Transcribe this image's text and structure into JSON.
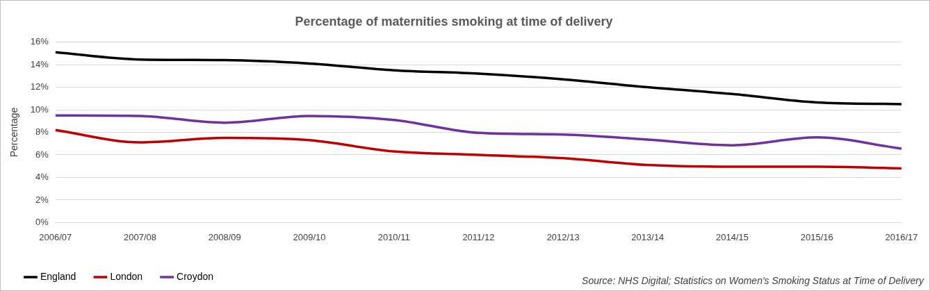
{
  "chart_data": {
    "type": "line",
    "title": "Percentage of maternities smoking at time of delivery",
    "ylabel": "Percentage",
    "categories": [
      "2006/07",
      "2007/08",
      "2008/09",
      "2009/10",
      "2010/11",
      "2011/12",
      "2012/13",
      "2013/14",
      "2014/15",
      "2015/16",
      "2016/17"
    ],
    "series": [
      {
        "name": "England",
        "color": "#000000",
        "values": [
          15.1,
          14.45,
          14.4,
          14.1,
          13.5,
          13.2,
          12.7,
          12.0,
          11.4,
          10.65,
          10.5
        ]
      },
      {
        "name": "London",
        "color": "#c00000",
        "values": [
          8.2,
          7.1,
          7.5,
          7.3,
          6.3,
          6.0,
          5.7,
          5.1,
          4.95,
          4.95,
          4.8
        ]
      },
      {
        "name": "Croydon",
        "color": "#7030a0",
        "values": [
          9.5,
          9.45,
          8.85,
          9.45,
          9.1,
          7.95,
          7.8,
          7.35,
          6.85,
          7.55,
          6.55
        ]
      }
    ],
    "ylim": [
      0,
      16
    ],
    "yticks": [
      {
        "value": 0,
        "label": "0%"
      },
      {
        "value": 2,
        "label": "2%"
      },
      {
        "value": 4,
        "label": "4%"
      },
      {
        "value": 6,
        "label": "6%"
      },
      {
        "value": 8,
        "label": "8%"
      },
      {
        "value": 10,
        "label": "10%"
      },
      {
        "value": 12,
        "label": "12%"
      },
      {
        "value": 14,
        "label": "14%"
      },
      {
        "value": 16,
        "label": "16%"
      }
    ],
    "grid": "y",
    "legend": "bottom",
    "marker": "none",
    "line_style": "solid",
    "annotations": [
      "Source: NHS Digital; Statistics on Women's Smoking Status at Time of Delivery"
    ]
  }
}
